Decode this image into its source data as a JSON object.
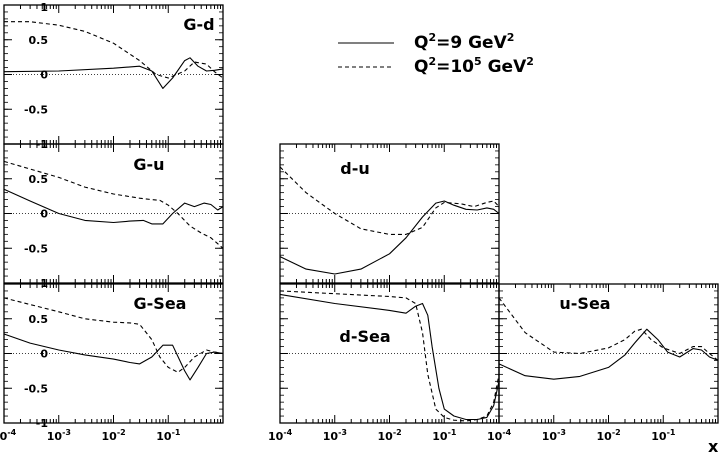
{
  "chart_data": [
    {
      "type": "line",
      "title": "G-d",
      "xscale": "log",
      "xlim": [
        0.0001,
        1
      ],
      "ylim": [
        -1,
        1
      ],
      "series": [
        {
          "name": "Q²=9 GeV²",
          "style": "solid",
          "x": [
            0.0001,
            0.001,
            0.01,
            0.03,
            0.05,
            0.08,
            0.12,
            0.2,
            0.25,
            0.35,
            0.5,
            0.7,
            1
          ],
          "y": [
            0.04,
            0.05,
            0.09,
            0.12,
            0.05,
            -0.2,
            -0.05,
            0.2,
            0.24,
            0.12,
            0.05,
            0.06,
            0.08
          ]
        },
        {
          "name": "Q²=10⁵ GeV²",
          "style": "dashed",
          "x": [
            0.0001,
            0.0003,
            0.001,
            0.003,
            0.01,
            0.03,
            0.06,
            0.1,
            0.2,
            0.3,
            0.5,
            0.7,
            1
          ],
          "y": [
            0.76,
            0.76,
            0.71,
            0.62,
            0.45,
            0.2,
            0.0,
            -0.05,
            0.05,
            0.18,
            0.15,
            0.04,
            -0.05
          ]
        }
      ]
    },
    {
      "type": "line",
      "title": "G-u",
      "xscale": "log",
      "xlim": [
        0.0001,
        1
      ],
      "ylim": [
        -1,
        1
      ],
      "series": [
        {
          "name": "Q²=9 GeV²",
          "style": "solid",
          "x": [
            0.0001,
            0.0003,
            0.001,
            0.003,
            0.01,
            0.02,
            0.035,
            0.05,
            0.08,
            0.12,
            0.2,
            0.3,
            0.45,
            0.6,
            0.8,
            1
          ],
          "y": [
            0.35,
            0.18,
            0.0,
            -0.1,
            -0.13,
            -0.11,
            -0.1,
            -0.15,
            -0.15,
            0.0,
            0.15,
            0.1,
            0.15,
            0.13,
            0.05,
            0.1
          ]
        },
        {
          "name": "Q²=10⁵ GeV²",
          "style": "dashed",
          "x": [
            0.0001,
            0.001,
            0.003,
            0.01,
            0.03,
            0.05,
            0.07,
            0.1,
            0.15,
            0.25,
            0.4,
            0.6,
            1
          ],
          "y": [
            0.75,
            0.52,
            0.38,
            0.28,
            0.22,
            0.2,
            0.19,
            0.12,
            0.0,
            -0.18,
            -0.28,
            -0.35,
            -0.5
          ]
        }
      ]
    },
    {
      "type": "line",
      "title": "d-u",
      "xscale": "log",
      "xlim": [
        0.0001,
        1
      ],
      "ylim": [
        -1,
        1
      ],
      "series": [
        {
          "name": "Q²=9 GeV²",
          "style": "solid",
          "x": [
            0.0001,
            0.0003,
            0.001,
            0.003,
            0.01,
            0.02,
            0.04,
            0.07,
            0.1,
            0.15,
            0.25,
            0.4,
            0.6,
            0.8,
            1
          ],
          "y": [
            -0.62,
            -0.8,
            -0.87,
            -0.8,
            -0.58,
            -0.35,
            -0.05,
            0.15,
            0.18,
            0.12,
            0.06,
            0.05,
            0.08,
            0.06,
            0.0
          ]
        },
        {
          "name": "Q²=10⁵ GeV²",
          "style": "dashed",
          "x": [
            0.0001,
            0.0003,
            0.001,
            0.003,
            0.01,
            0.02,
            0.04,
            0.07,
            0.1,
            0.2,
            0.35,
            0.6,
            0.8,
            1
          ],
          "y": [
            0.67,
            0.3,
            0.0,
            -0.22,
            -0.3,
            -0.3,
            -0.2,
            0.08,
            0.16,
            0.14,
            0.1,
            0.16,
            0.18,
            0.1
          ]
        }
      ]
    },
    {
      "type": "line",
      "title": "G-Sea",
      "xscale": "log",
      "xlim": [
        0.0001,
        1
      ],
      "ylim": [
        -1,
        1
      ],
      "series": [
        {
          "name": "Q²=9 GeV²",
          "style": "solid",
          "x": [
            0.0001,
            0.0003,
            0.001,
            0.003,
            0.01,
            0.02,
            0.03,
            0.05,
            0.08,
            0.12,
            0.2,
            0.25,
            0.35,
            0.5,
            0.7,
            1
          ],
          "y": [
            0.28,
            0.15,
            0.05,
            -0.02,
            -0.08,
            -0.13,
            -0.15,
            -0.05,
            0.12,
            0.12,
            -0.25,
            -0.38,
            -0.2,
            0.0,
            0.02,
            0.0
          ]
        },
        {
          "name": "Q²=10⁵ GeV²",
          "style": "dashed",
          "x": [
            0.0001,
            0.001,
            0.003,
            0.01,
            0.02,
            0.03,
            0.05,
            0.07,
            0.1,
            0.15,
            0.2,
            0.3,
            0.5,
            0.7,
            1
          ],
          "y": [
            0.8,
            0.6,
            0.5,
            0.45,
            0.44,
            0.42,
            0.2,
            -0.05,
            -0.2,
            -0.27,
            -0.2,
            -0.05,
            0.05,
            0.02,
            0.0
          ]
        }
      ]
    },
    {
      "type": "line",
      "title": "d-Sea",
      "xscale": "log",
      "xlim": [
        0.0001,
        1
      ],
      "ylim": [
        -1,
        1
      ],
      "series": [
        {
          "name": "Q²=9 GeV²",
          "style": "solid",
          "x": [
            0.0001,
            0.001,
            0.01,
            0.02,
            0.03,
            0.04,
            0.05,
            0.06,
            0.08,
            0.1,
            0.15,
            0.25,
            0.4,
            0.6,
            0.8,
            1
          ],
          "y": [
            0.85,
            0.72,
            0.62,
            0.58,
            0.68,
            0.72,
            0.55,
            0.1,
            -0.5,
            -0.8,
            -0.9,
            -0.95,
            -0.95,
            -0.92,
            -0.75,
            -0.4
          ]
        },
        {
          "name": "Q²=10⁵ GeV²",
          "style": "dashed",
          "x": [
            0.0001,
            0.001,
            0.01,
            0.02,
            0.03,
            0.04,
            0.05,
            0.07,
            0.1,
            0.15,
            0.25,
            0.4,
            0.6,
            0.8,
            1
          ],
          "y": [
            0.9,
            0.86,
            0.82,
            0.8,
            0.72,
            0.3,
            -0.3,
            -0.8,
            -0.92,
            -0.96,
            -0.97,
            -0.95,
            -0.9,
            -0.7,
            -0.3
          ]
        }
      ]
    },
    {
      "type": "line",
      "title": "u-Sea",
      "xscale": "log",
      "xlim": [
        0.0001,
        1
      ],
      "ylim": [
        -1,
        1
      ],
      "series": [
        {
          "name": "Q²=9 GeV²",
          "style": "solid",
          "x": [
            0.0001,
            0.0003,
            0.001,
            0.003,
            0.01,
            0.02,
            0.03,
            0.05,
            0.08,
            0.12,
            0.2,
            0.35,
            0.5,
            0.7,
            1
          ],
          "y": [
            -0.15,
            -0.32,
            -0.37,
            -0.33,
            -0.2,
            -0.02,
            0.15,
            0.35,
            0.2,
            0.02,
            -0.05,
            0.07,
            0.05,
            -0.05,
            -0.1
          ]
        },
        {
          "name": "Q²=10⁵ GeV²",
          "style": "dashed",
          "x": [
            0.0001,
            0.0003,
            0.001,
            0.003,
            0.01,
            0.02,
            0.03,
            0.04,
            0.06,
            0.1,
            0.2,
            0.35,
            0.5,
            0.7,
            1
          ],
          "y": [
            0.8,
            0.3,
            0.02,
            0.0,
            0.08,
            0.2,
            0.32,
            0.35,
            0.2,
            0.08,
            0.0,
            0.1,
            0.1,
            0.0,
            -0.1
          ]
        }
      ]
    }
  ],
  "y_ticks": [
    {
      "value": 1,
      "label": "1"
    },
    {
      "value": 0.5,
      "label": "0.5"
    },
    {
      "value": 0,
      "label": "0"
    },
    {
      "value": -0.5,
      "label": "-0.5"
    },
    {
      "value": -1,
      "label": "-1"
    }
  ],
  "x_ticks": [
    {
      "base": "10",
      "exp": "-4"
    },
    {
      "base": "10",
      "exp": "-3"
    },
    {
      "base": "10",
      "exp": "-2"
    },
    {
      "base": "10",
      "exp": "-1"
    }
  ],
  "x_axis_label": "x",
  "legend": [
    {
      "style": "solid",
      "text": "Q",
      "sup1": "2",
      "mid": "=9 GeV",
      "sup2": "2"
    },
    {
      "style": "dashed",
      "text": "Q",
      "sup1": "2",
      "mid": "=10",
      "sup3": "5",
      "mid2": " GeV",
      "sup2": "2"
    }
  ],
  "colors": {
    "line": "#000000",
    "background": "#ffffff"
  }
}
